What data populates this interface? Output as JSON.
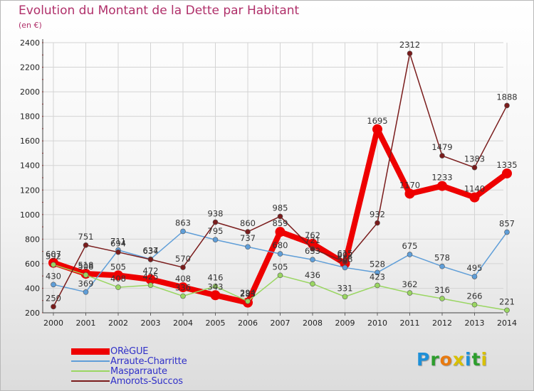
{
  "title": "Evolution du Montant de la Dette par Habitant",
  "unit_label": "(en €)",
  "logo_text": "Proxiti",
  "logo_colors": [
    "#1e90d8",
    "#2d9e2d",
    "#e87a10",
    "#d8c000",
    "#1e90d8",
    "#2d9e2d",
    "#d8c000"
  ],
  "chart_data": {
    "type": "line",
    "x": [
      "2000",
      "2001",
      "2002",
      "2003",
      "2004",
      "2005",
      "2006",
      "2007",
      "2008",
      "2009",
      "2010",
      "2011",
      "2012",
      "2013",
      "2014"
    ],
    "yticks": [
      200,
      400,
      600,
      800,
      1000,
      1200,
      1400,
      1600,
      1800,
      2000,
      2200,
      2400
    ],
    "ylim": [
      200,
      2400
    ],
    "grid": true,
    "legend_position": "bottom-left",
    "series": [
      {
        "name": "ORèGUE",
        "color": "#ee0000",
        "width": 8,
        "marker": 7,
        "labels": true,
        "values": [
          607,
          518,
          505,
          472,
          408,
          343,
          283,
          859,
          762,
          602,
          1695,
          1170,
          1233,
          1140,
          1335
        ],
        "label_text": [
          "607",
          "518",
          "505",
          "472",
          "408",
          "343",
          "283",
          "859",
          "762",
          "602",
          "1695",
          "1170",
          "1233",
          "1140",
          "1335"
        ]
      },
      {
        "name": "Arraute-Charritte",
        "color": "#5f9ed8",
        "width": 1.5,
        "marker": 3.5,
        "labels": true,
        "values": [
          430,
          369,
          711,
          637,
          863,
          795,
          737,
          680,
          633,
          568,
          528,
          675,
          578,
          495,
          857
        ],
        "label_text": [
          "430",
          "369",
          "711",
          "637",
          "863",
          "795",
          "737",
          "680",
          "633",
          "568",
          "528",
          "675",
          "578",
          "495",
          "857"
        ]
      },
      {
        "name": "Masparraute",
        "color": "#9ad662",
        "width": 1.5,
        "marker": 3.5,
        "labels": true,
        "values": [
          592,
          508,
          408,
          425,
          336,
          416,
          294,
          505,
          436,
          331,
          423,
          362,
          316,
          266,
          221
        ],
        "label_text": [
          "592",
          "508",
          "408",
          "425",
          "336",
          "416",
          "294",
          "505",
          "436",
          "331",
          "423",
          "362",
          "316",
          "266",
          "221"
        ]
      },
      {
        "name": "Amorots-Succos",
        "color": "#7a1c1c",
        "width": 1.5,
        "marker": 3.5,
        "labels": true,
        "values": [
          250,
          751,
          694,
          634,
          570,
          938,
          860,
          985,
          721,
          615,
          932,
          2312,
          1479,
          1383,
          1888
        ],
        "label_text": [
          "250",
          "751",
          "694",
          "634",
          "570",
          "938",
          "860",
          "985",
          "721",
          "615",
          "932",
          "2312",
          "1479",
          "1383",
          "1888"
        ]
      }
    ]
  }
}
